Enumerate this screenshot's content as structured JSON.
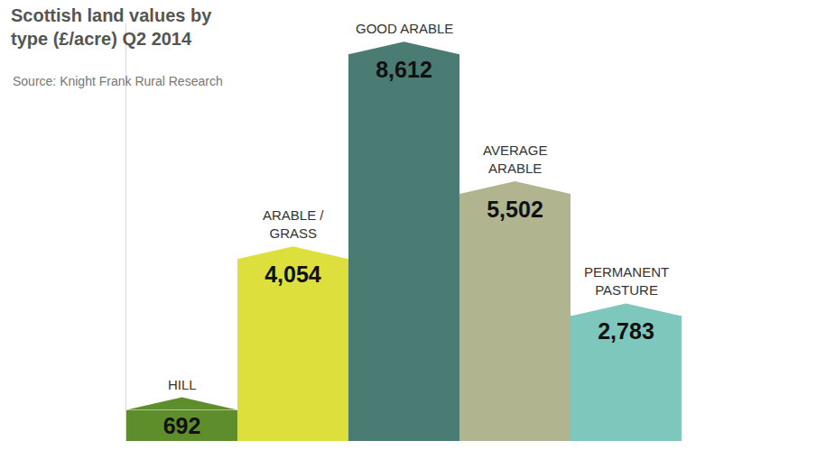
{
  "chart_data": {
    "type": "bar",
    "title": "Scottish land values by type (£/acre) Q2 2014",
    "subtitle": "Source: Knight Frank Rural Research",
    "categories": [
      "HILL",
      "ARABLE / GRASS",
      "GOOD ARABLE",
      "AVERAGE ARABLE",
      "PERMANENT PASTURE"
    ],
    "values": [
      692,
      4054,
      8612,
      5502,
      2783
    ],
    "value_labels": [
      "692",
      "4,054",
      "8,612",
      "5,502",
      "2,783"
    ],
    "colors": [
      "#5e8d2c",
      "#dde03c",
      "#4b7c73",
      "#b0b48f",
      "#7ec7bd"
    ],
    "ylim": [
      0,
      9300
    ],
    "data_labels": true,
    "tick_labels": false,
    "grid": false
  }
}
